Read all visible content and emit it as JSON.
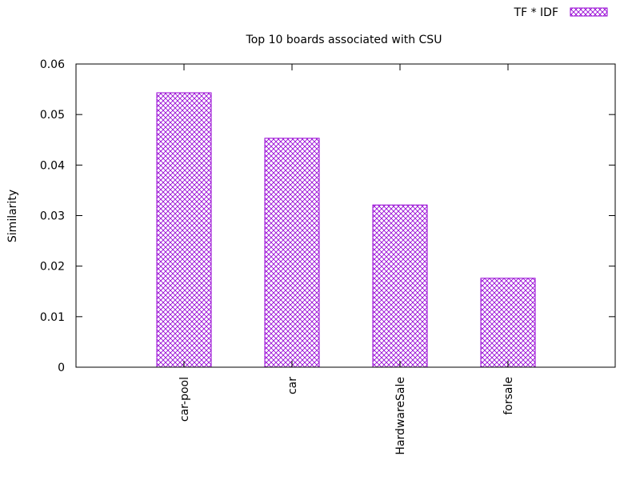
{
  "chart_data": {
    "type": "bar",
    "title": "Top 10 boards associated with CSU",
    "xlabel": "",
    "ylabel": "Similarity",
    "categories": [
      "car-pool",
      "car",
      "HardwareSale",
      "forsale"
    ],
    "series": [
      {
        "name": "TF * IDF",
        "values": [
          0.0543,
          0.0453,
          0.0321,
          0.0176
        ]
      }
    ],
    "ylim": [
      0,
      0.06
    ],
    "yticks": [
      "0",
      "0.01",
      "0.02",
      "0.03",
      "0.04",
      "0.05",
      "0.06"
    ],
    "legend_position": "top-right",
    "grid": false,
    "bar_color": "#9400d3",
    "bar_fill": "crosshatch"
  }
}
